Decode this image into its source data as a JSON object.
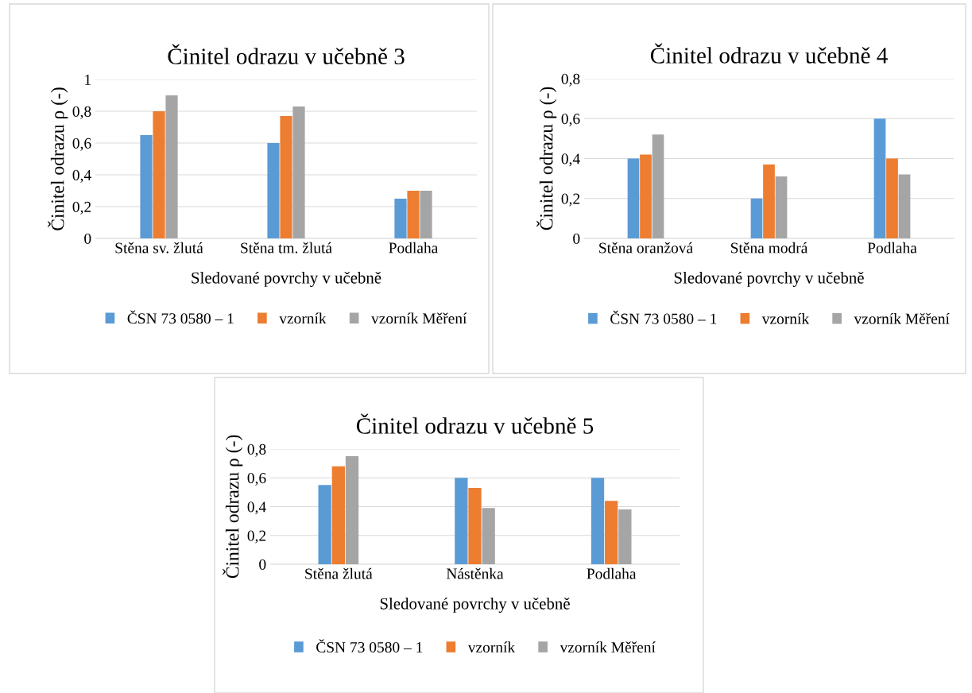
{
  "chart_data": [
    {
      "type": "bar",
      "title": "Činitel odrazu v učebně 3",
      "xlabel": "Sledované povrchy v učebně",
      "ylabel": "Činitel odrazu ρ (-)",
      "categories": [
        "Stěna sv. žlutá",
        "Stěna tm. žlutá",
        "Podlaha"
      ],
      "series": [
        {
          "name": "ČSN 73 0580 – 1",
          "color": "#5b9bd5",
          "values": [
            0.65,
            0.6,
            0.25
          ]
        },
        {
          "name": "vzorník",
          "color": "#ed7d31",
          "values": [
            0.8,
            0.77,
            0.3
          ]
        },
        {
          "name": "vzorník Měření",
          "color": "#a5a5a5",
          "values": [
            0.9,
            0.83,
            0.3
          ]
        }
      ],
      "ylim": [
        0,
        1
      ],
      "yticks": [
        0,
        {
          "value": 0.2,
          "label": "0,2"
        },
        {
          "value": 0.4,
          "label": "0,4"
        },
        {
          "value": 0.6,
          "label": "0,6"
        },
        {
          "value": 0.8,
          "label": "0,8"
        },
        1
      ],
      "grid": "y",
      "legend": "bottom"
    },
    {
      "type": "bar",
      "title": "Činitel odrazu v učebně 4",
      "xlabel": "Sledované povrchy v učebně",
      "ylabel": "Činitel odrazu ρ (-)",
      "categories": [
        "Stěna oranžová",
        "Stěna modrá",
        "Podlaha"
      ],
      "series": [
        {
          "name": "ČSN 73 0580 – 1",
          "color": "#5b9bd5",
          "values": [
            0.4,
            0.2,
            0.6
          ]
        },
        {
          "name": "vzorník",
          "color": "#ed7d31",
          "values": [
            0.42,
            0.37,
            0.4
          ]
        },
        {
          "name": "vzorník Měření",
          "color": "#a5a5a5",
          "values": [
            0.52,
            0.31,
            0.32
          ]
        }
      ],
      "ylim": [
        0,
        0.8
      ],
      "yticks": [
        0,
        {
          "value": 0.2,
          "label": "0,2"
        },
        {
          "value": 0.4,
          "label": "0,4"
        },
        {
          "value": 0.6,
          "label": "0,6"
        },
        {
          "value": 0.8,
          "label": "0,8"
        }
      ],
      "grid": "y",
      "legend": "bottom"
    },
    {
      "type": "bar",
      "title": "Činitel odrazu v učebně 5",
      "xlabel": "Sledované povrchy v učebně",
      "ylabel": "Činitel odrazu ρ (-)",
      "categories": [
        "Stěna žlutá",
        "Nástěnka",
        "Podlaha"
      ],
      "series": [
        {
          "name": "ČSN 73 0580 – 1",
          "color": "#5b9bd5",
          "values": [
            0.55,
            0.6,
            0.6
          ]
        },
        {
          "name": "vzorník",
          "color": "#ed7d31",
          "values": [
            0.68,
            0.53,
            0.44
          ]
        },
        {
          "name": "vzorník Měření",
          "color": "#a5a5a5",
          "values": [
            0.75,
            0.39,
            0.38
          ]
        }
      ],
      "ylim": [
        0,
        0.8
      ],
      "yticks": [
        0,
        {
          "value": 0.2,
          "label": "0,2"
        },
        {
          "value": 0.4,
          "label": "0,4"
        },
        {
          "value": 0.6,
          "label": "0,6"
        },
        {
          "value": 0.8,
          "label": "0,8"
        }
      ],
      "grid": "y",
      "legend": "bottom"
    }
  ]
}
